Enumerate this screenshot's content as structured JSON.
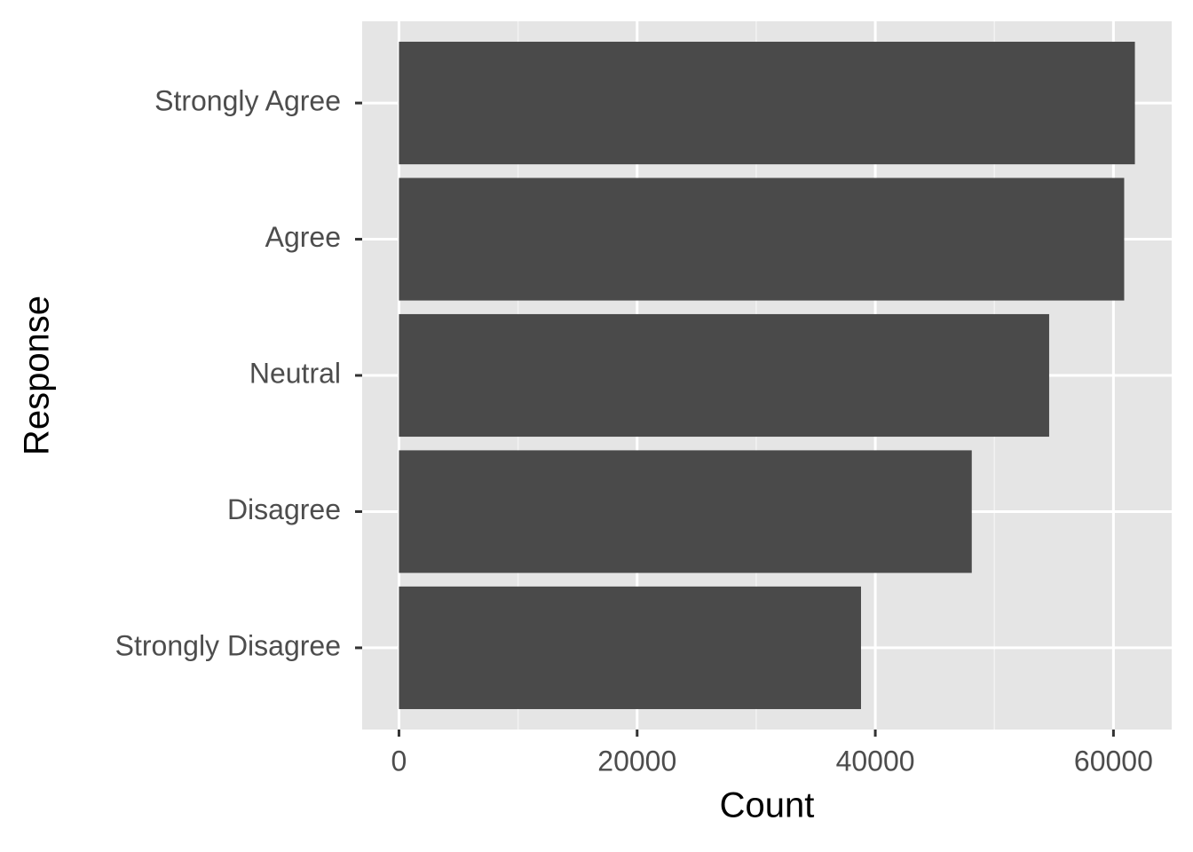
{
  "chart_data": {
    "type": "bar",
    "orientation": "horizontal",
    "categories": [
      "Strongly Agree",
      "Agree",
      "Neutral",
      "Disagree",
      "Strongly Disagree"
    ],
    "values": [
      61800,
      60900,
      54600,
      48100,
      38800
    ],
    "color": "#4a4a4a",
    "xlabel": "Count",
    "ylabel": "Response",
    "xlim": [
      -3090,
      64890
    ],
    "xticks": [
      0,
      20000,
      40000,
      60000
    ],
    "xminor": [
      10000,
      30000,
      50000
    ],
    "grid": true
  }
}
